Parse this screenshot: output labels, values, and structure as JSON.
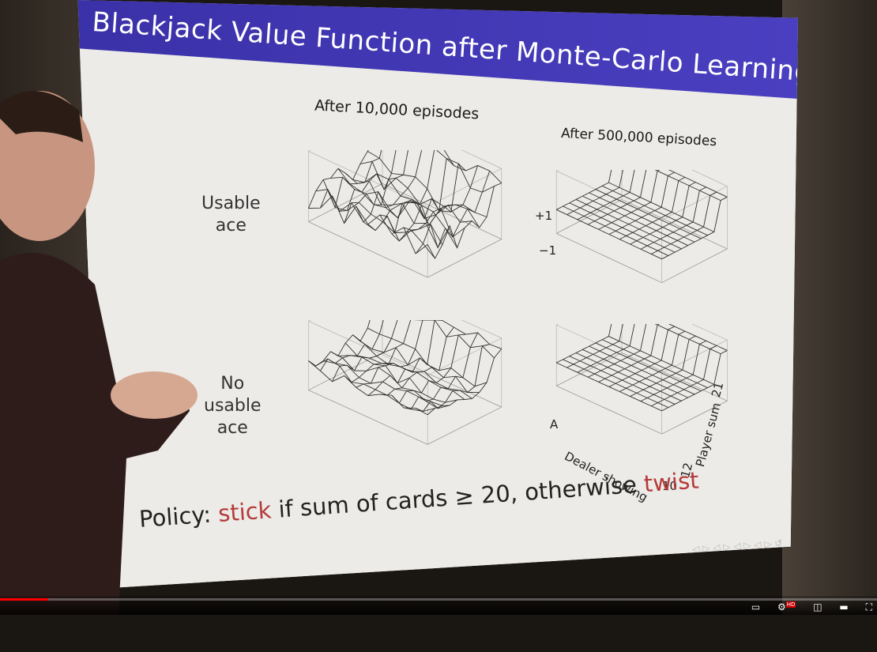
{
  "slide": {
    "title": "Blackjack Value Function after Monte-Carlo Learning",
    "columns": [
      "After 10,000 episodes",
      "After 500,000 episodes"
    ],
    "rows": [
      "Usable\nace",
      "No\nusable\nace"
    ],
    "axis": {
      "z_top": "+1",
      "z_bottom": "−1",
      "dealer_start": "A",
      "dealer_label": "Dealer showing",
      "dealer_end": "10",
      "player_start": "12",
      "player_label": "Player sum",
      "player_end": "21"
    },
    "policy": {
      "prefix": "Policy: ",
      "stick": "stick",
      "middle": " if sum of cards ≥ 20, otherwise ",
      "twist": "twist"
    }
  },
  "video": {
    "played_fraction": 0.055,
    "hd_badge": "HD"
  },
  "colors": {
    "title_bar": "#3a31a8",
    "policy_highlight": "#b53a3a",
    "progress": "#ff0000"
  }
}
